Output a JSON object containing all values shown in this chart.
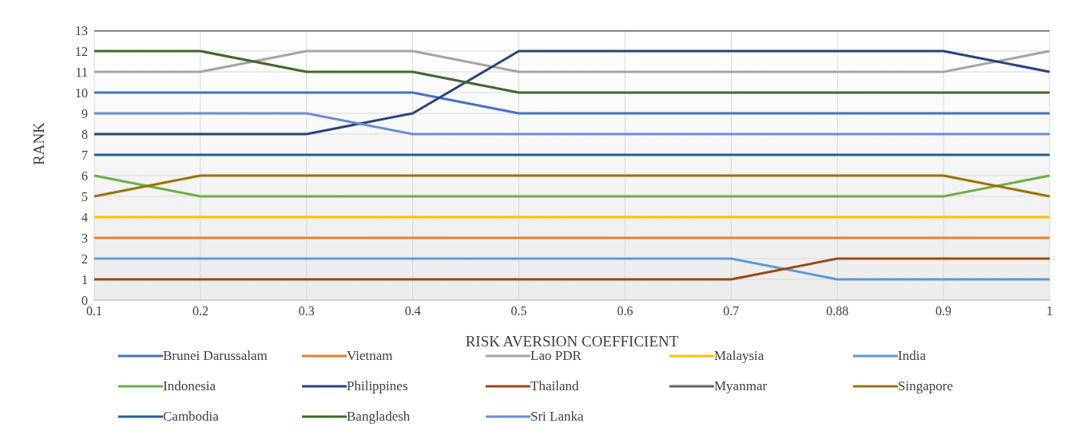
{
  "chart_data": {
    "type": "line",
    "xlabel": "RISK AVERSION COEFFICIENT",
    "ylabel": "RANK",
    "categories": [
      "0.1",
      "0.2",
      "0.3",
      "0.4",
      "0.5",
      "0.6",
      "0.7",
      "0.88",
      "0.9",
      "1"
    ],
    "series": [
      {
        "name": "Brunei Darussalam",
        "color": "#4472c4",
        "values": [
          10,
          10,
          10,
          10,
          9,
          9,
          9,
          9,
          9,
          9
        ]
      },
      {
        "name": "Vietnam",
        "color": "#ed7d31",
        "values": [
          3,
          3,
          3,
          3,
          3,
          3,
          3,
          3,
          3,
          3
        ]
      },
      {
        "name": "Lao PDR",
        "color": "#a5a5a5",
        "values": [
          11,
          11,
          12,
          12,
          11,
          11,
          11,
          11,
          11,
          12
        ]
      },
      {
        "name": "Malaysia",
        "color": "#ffc000",
        "values": [
          4,
          4,
          4,
          4,
          4,
          4,
          4,
          4,
          4,
          4
        ]
      },
      {
        "name": "India",
        "color": "#5b9bd5",
        "values": [
          2,
          2,
          2,
          2,
          2,
          2,
          2,
          1,
          1,
          1
        ]
      },
      {
        "name": "Indonesia",
        "color": "#70ad47",
        "values": [
          6,
          5,
          5,
          5,
          5,
          5,
          5,
          5,
          5,
          6
        ]
      },
      {
        "name": "Philippines",
        "color": "#264478",
        "values": [
          8,
          8,
          8,
          9,
          12,
          12,
          12,
          12,
          12,
          11
        ]
      },
      {
        "name": "Thailand",
        "color": "#9e480e",
        "values": [
          1,
          1,
          1,
          1,
          1,
          1,
          1,
          2,
          2,
          2
        ]
      },
      {
        "name": "Myanmar",
        "color": "#636363",
        "values": [
          13,
          13,
          13,
          13,
          13,
          13,
          13,
          13,
          13,
          13
        ]
      },
      {
        "name": "Singapore",
        "color": "#997300",
        "values": [
          5,
          6,
          6,
          6,
          6,
          6,
          6,
          6,
          6,
          5
        ]
      },
      {
        "name": "Cambodia",
        "color": "#255e91",
        "values": [
          7,
          7,
          7,
          7,
          7,
          7,
          7,
          7,
          7,
          7
        ]
      },
      {
        "name": "Bangladesh",
        "color": "#43682b",
        "values": [
          12,
          12,
          11,
          11,
          10,
          10,
          10,
          10,
          10,
          10
        ]
      },
      {
        "name": "Sri Lanka",
        "color": "#698ed0",
        "values": [
          9,
          9,
          9,
          8,
          8,
          8,
          8,
          8,
          8,
          8
        ]
      }
    ],
    "ylim": [
      0,
      13
    ],
    "yticks": [
      0,
      1,
      2,
      3,
      4,
      5,
      6,
      7,
      8,
      9,
      10,
      11,
      12,
      13
    ],
    "grid": true,
    "legend": "bottom",
    "marker": "none",
    "line_style": "solid"
  }
}
